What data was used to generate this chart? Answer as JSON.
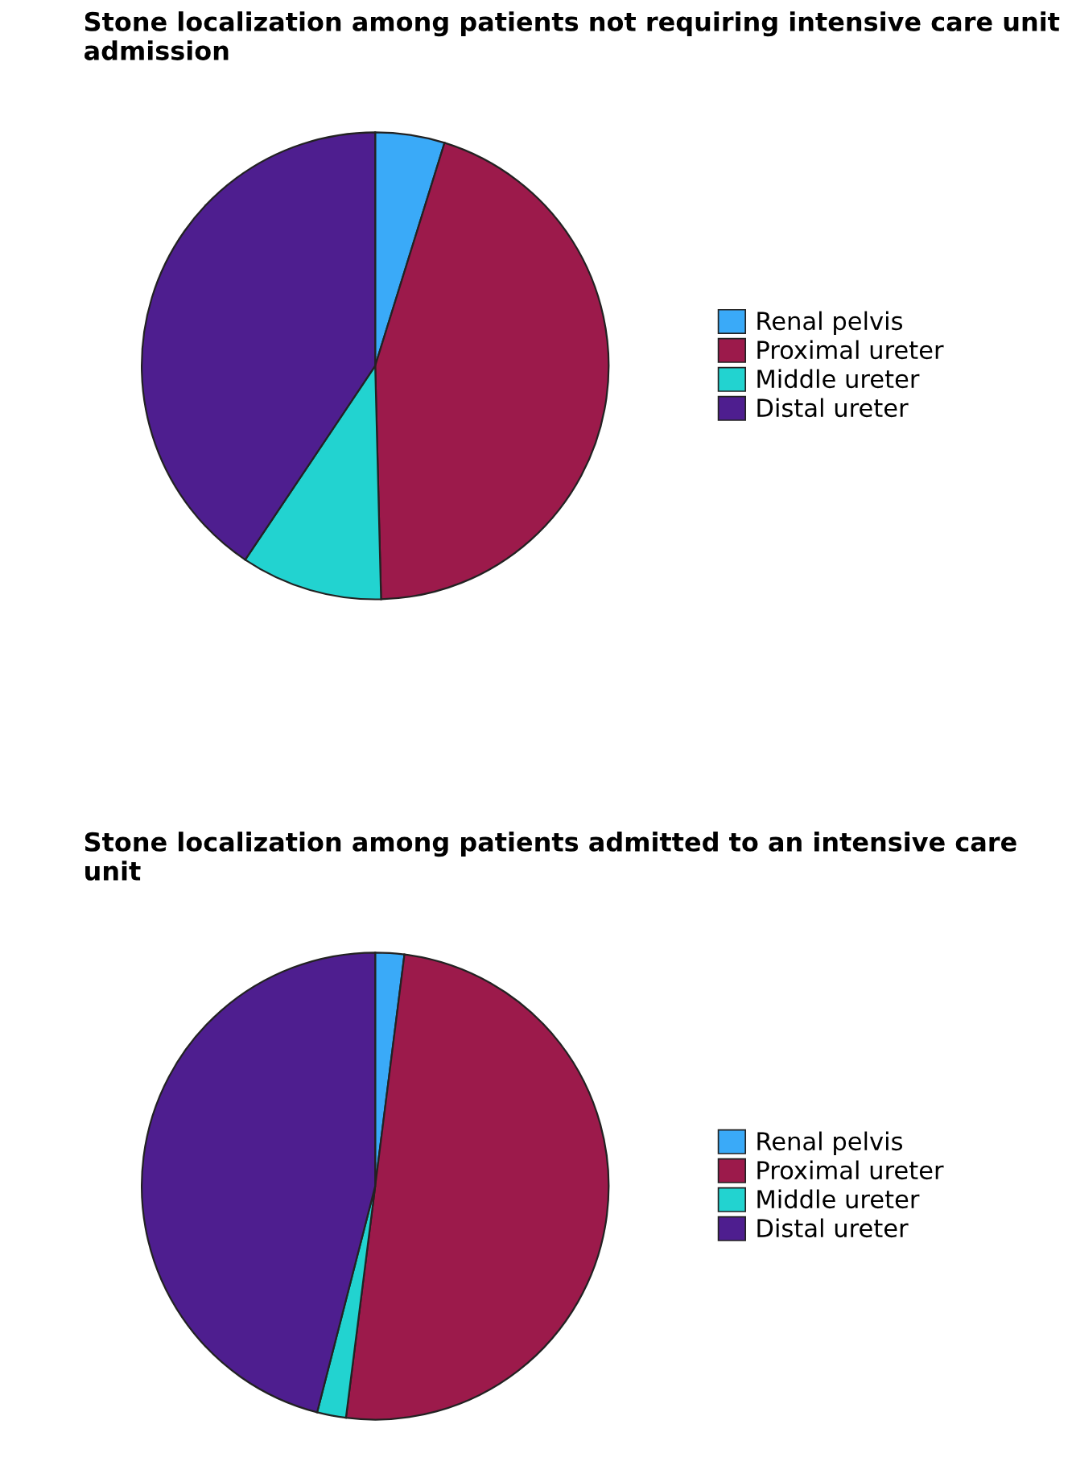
{
  "chart_data": [
    {
      "type": "pie",
      "title": "Stone localization among patients not requiring intensive care unit admission",
      "categories": [
        "Renal pelvis",
        "Proximal ureter",
        "Middle ureter",
        "Distal ureter"
      ],
      "values": [
        4.8,
        44.8,
        9.8,
        40.6
      ],
      "colors": [
        "#3aaaf8",
        "#9c1a4b",
        "#22d3d0",
        "#4e1e8f"
      ],
      "legend": "right"
    },
    {
      "type": "pie",
      "title": "Stone localization among patients admitted to an intensive care unit",
      "categories": [
        "Renal pelvis",
        "Proximal ureter",
        "Middle ureter",
        "Distal ureter"
      ],
      "values": [
        2,
        50,
        2,
        46
      ],
      "colors": [
        "#3aaaf8",
        "#9c1a4b",
        "#22d3d0",
        "#4e1e8f"
      ],
      "legend": "right"
    }
  ]
}
